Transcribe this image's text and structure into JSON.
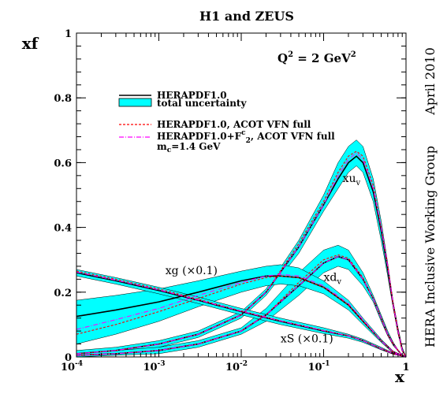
{
  "chart_data": {
    "type": "line",
    "title": "H1 and ZEUS",
    "ylabel": "xf",
    "xlabel": "x",
    "xscale": "log",
    "xlim": [
      0.0001,
      1
    ],
    "ylim": [
      0,
      1
    ],
    "grid": false,
    "legend_position": "top-left",
    "q2_label": "Q² = 2 GeV²",
    "side_label": "HERA Inclusive Working Group",
    "date_label": "April 2010",
    "x_ticks": [
      {
        "v": 0.0001,
        "base": "10",
        "exp": "-4"
      },
      {
        "v": 0.001,
        "base": "10",
        "exp": "-3"
      },
      {
        "v": 0.01,
        "base": "10",
        "exp": "-2"
      },
      {
        "v": 0.1,
        "base": "10",
        "exp": "-1"
      },
      {
        "v": 1,
        "base": "1",
        "exp": ""
      }
    ],
    "y_ticks": [
      {
        "v": 0,
        "label": "0"
      },
      {
        "v": 0.2,
        "label": "0.2"
      },
      {
        "v": 0.4,
        "label": "0.4"
      },
      {
        "v": 0.6,
        "label": "0.6"
      },
      {
        "v": 0.8,
        "label": "0.8"
      },
      {
        "v": 1,
        "label": "1"
      }
    ],
    "legend": {
      "central": "HERAPDF1.0",
      "band": "total uncertainty",
      "acot": "HERAPDF1.0, ACOT VFN full",
      "acot_f2c_pre": "HERAPDF1.0+F",
      "acot_f2c_post": ", ACOT VFN full",
      "mass": "m",
      "mass_post": "=1.4 GeV"
    },
    "colors": {
      "band": "#00ffff",
      "central": "#000000",
      "acot": "#ff0000",
      "acot_f2c": "#ff00ff"
    },
    "series": [
      {
        "name": "xuv",
        "label_main": "xu",
        "label_sub": "v",
        "label_at": [
          0.17,
          0.54
        ],
        "x": [
          0.0001,
          0.0003,
          0.001,
          0.003,
          0.01,
          0.02,
          0.05,
          0.1,
          0.15,
          0.2,
          0.25,
          0.3,
          0.4,
          0.5,
          0.6,
          0.7,
          0.8,
          0.9,
          1.0
        ],
        "central": [
          0.01,
          0.02,
          0.04,
          0.07,
          0.13,
          0.2,
          0.34,
          0.47,
          0.55,
          0.6,
          0.62,
          0.6,
          0.51,
          0.39,
          0.27,
          0.16,
          0.08,
          0.02,
          0.0
        ],
        "upper": [
          0.02,
          0.03,
          0.05,
          0.08,
          0.14,
          0.21,
          0.36,
          0.5,
          0.6,
          0.65,
          0.67,
          0.65,
          0.55,
          0.42,
          0.29,
          0.17,
          0.09,
          0.03,
          0.0
        ],
        "lower": [
          0.0,
          0.01,
          0.03,
          0.06,
          0.12,
          0.19,
          0.32,
          0.45,
          0.52,
          0.57,
          0.59,
          0.57,
          0.48,
          0.36,
          0.25,
          0.15,
          0.07,
          0.02,
          0.0
        ],
        "acot": [
          0.01,
          0.02,
          0.04,
          0.07,
          0.13,
          0.2,
          0.35,
          0.48,
          0.57,
          0.62,
          0.635,
          0.62,
          0.53,
          0.4,
          0.28,
          0.16,
          0.08,
          0.02,
          0.0
        ],
        "acot_f2c": [
          0.01,
          0.02,
          0.04,
          0.07,
          0.13,
          0.2,
          0.34,
          0.47,
          0.56,
          0.61,
          0.63,
          0.61,
          0.52,
          0.4,
          0.28,
          0.16,
          0.08,
          0.02,
          0.0
        ]
      },
      {
        "name": "xdv",
        "label_main": "xd",
        "label_sub": "v",
        "label_at": [
          0.1,
          0.235
        ],
        "x": [
          0.0001,
          0.0003,
          0.001,
          0.003,
          0.01,
          0.02,
          0.05,
          0.1,
          0.15,
          0.2,
          0.3,
          0.4,
          0.5,
          0.6,
          0.7,
          0.8,
          0.9,
          1.0
        ],
        "central": [
          0.005,
          0.01,
          0.02,
          0.04,
          0.08,
          0.13,
          0.22,
          0.29,
          0.31,
          0.3,
          0.24,
          0.18,
          0.12,
          0.07,
          0.04,
          0.02,
          0.005,
          0.0
        ],
        "upper": [
          0.01,
          0.02,
          0.03,
          0.05,
          0.09,
          0.15,
          0.26,
          0.33,
          0.345,
          0.33,
          0.26,
          0.19,
          0.13,
          0.08,
          0.045,
          0.022,
          0.006,
          0.0
        ],
        "lower": [
          0.0,
          0.005,
          0.01,
          0.03,
          0.07,
          0.11,
          0.19,
          0.26,
          0.28,
          0.27,
          0.22,
          0.17,
          0.11,
          0.065,
          0.035,
          0.018,
          0.004,
          0.0
        ],
        "acot": [
          0.005,
          0.01,
          0.02,
          0.04,
          0.08,
          0.13,
          0.23,
          0.3,
          0.315,
          0.305,
          0.245,
          0.18,
          0.12,
          0.07,
          0.04,
          0.02,
          0.005,
          0.0
        ],
        "acot_f2c": [
          0.005,
          0.01,
          0.02,
          0.04,
          0.08,
          0.13,
          0.22,
          0.29,
          0.31,
          0.3,
          0.24,
          0.18,
          0.12,
          0.07,
          0.04,
          0.02,
          0.005,
          0.0
        ]
      },
      {
        "name": "xg (×0.1)",
        "label_main": "xg (×0.1)",
        "label_sub": "",
        "label_at": [
          0.0012,
          0.255
        ],
        "x": [
          0.0001,
          0.0003,
          0.001,
          0.003,
          0.01,
          0.02,
          0.03,
          0.05,
          0.1,
          0.2,
          0.3,
          0.5,
          0.7,
          1.0
        ],
        "central": [
          0.125,
          0.145,
          0.17,
          0.2,
          0.235,
          0.25,
          0.25,
          0.245,
          0.215,
          0.16,
          0.11,
          0.05,
          0.015,
          0.0
        ],
        "upper": [
          0.175,
          0.19,
          0.21,
          0.235,
          0.265,
          0.28,
          0.285,
          0.275,
          0.235,
          0.175,
          0.12,
          0.055,
          0.018,
          0.0
        ],
        "lower": [
          0.04,
          0.07,
          0.11,
          0.155,
          0.2,
          0.22,
          0.225,
          0.22,
          0.195,
          0.145,
          0.1,
          0.045,
          0.012,
          0.0
        ],
        "acot": [
          0.07,
          0.1,
          0.14,
          0.18,
          0.225,
          0.245,
          0.25,
          0.245,
          0.215,
          0.16,
          0.11,
          0.05,
          0.015,
          0.0
        ],
        "acot_f2c": [
          0.085,
          0.115,
          0.15,
          0.19,
          0.23,
          0.25,
          0.255,
          0.25,
          0.22,
          0.165,
          0.115,
          0.05,
          0.015,
          0.0
        ]
      },
      {
        "name": "xS (×0.1)",
        "label_main": "xS (×0.1)",
        "label_sub": "",
        "label_at": [
          0.03,
          0.045
        ],
        "x": [
          0.0001,
          0.0003,
          0.001,
          0.003,
          0.01,
          0.03,
          0.1,
          0.2,
          0.3,
          0.5,
          0.7,
          1.0
        ],
        "central": [
          0.26,
          0.235,
          0.205,
          0.175,
          0.14,
          0.11,
          0.08,
          0.065,
          0.05,
          0.025,
          0.01,
          0.0
        ],
        "upper": [
          0.27,
          0.245,
          0.215,
          0.185,
          0.15,
          0.12,
          0.09,
          0.07,
          0.055,
          0.03,
          0.012,
          0.0
        ],
        "lower": [
          0.25,
          0.225,
          0.195,
          0.165,
          0.13,
          0.1,
          0.072,
          0.058,
          0.045,
          0.022,
          0.008,
          0.0
        ],
        "acot": [
          0.265,
          0.24,
          0.21,
          0.178,
          0.142,
          0.112,
          0.082,
          0.066,
          0.051,
          0.026,
          0.01,
          0.0
        ],
        "acot_f2c": [
          0.262,
          0.237,
          0.207,
          0.176,
          0.141,
          0.111,
          0.081,
          0.065,
          0.05,
          0.025,
          0.01,
          0.0
        ]
      }
    ]
  }
}
